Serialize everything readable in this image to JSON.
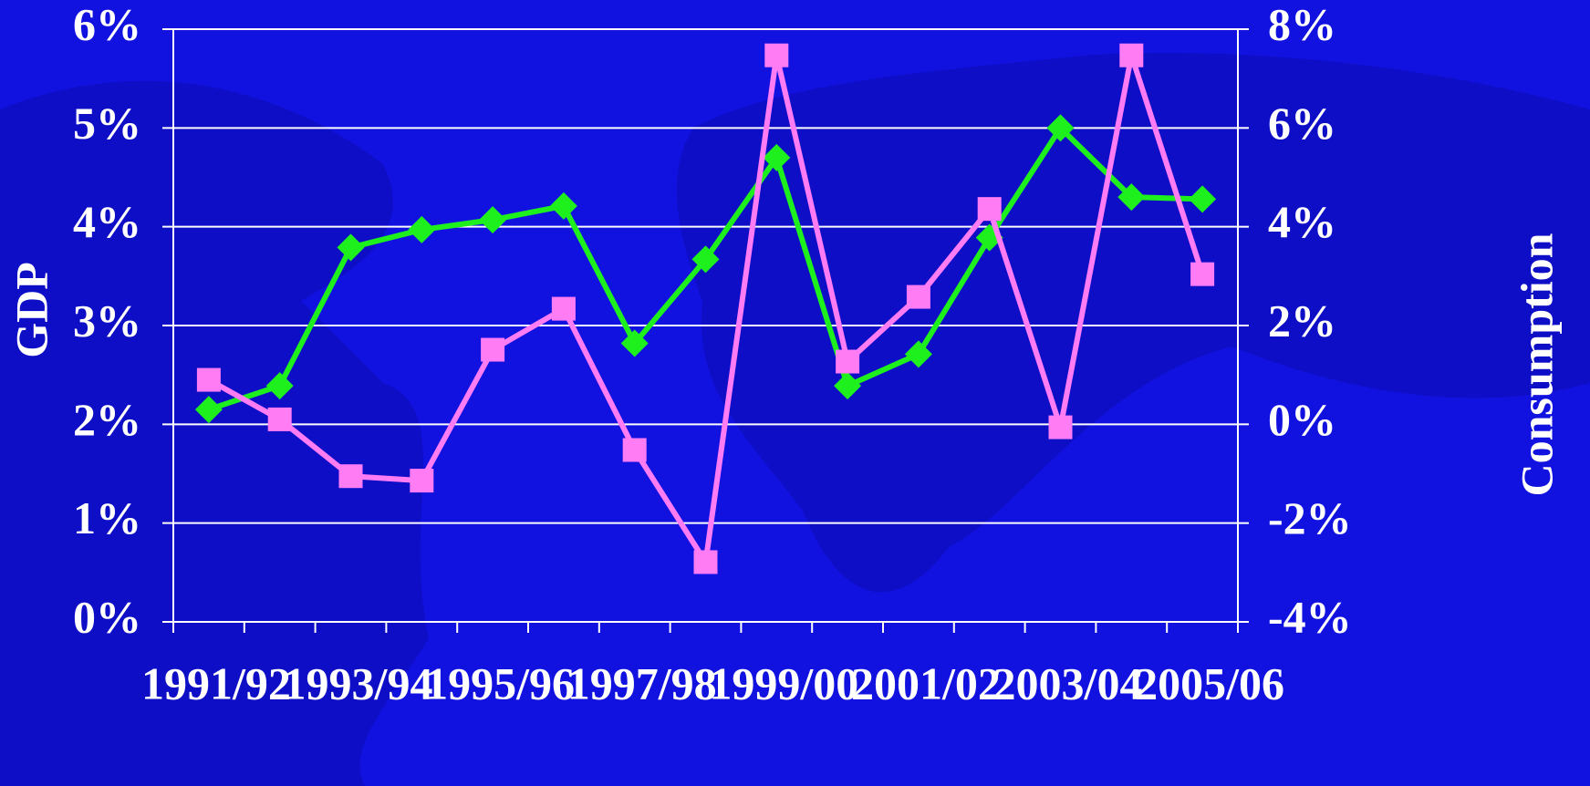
{
  "chart_data": {
    "type": "line",
    "categories": [
      "1991/92",
      null,
      "1993/94",
      null,
      "1995/96",
      null,
      "1997/98",
      null,
      "1999/00",
      null,
      "2001/02",
      null,
      "2003/04",
      null,
      "2005/06"
    ],
    "y_label": "GDP",
    "y2_label": "Consumption",
    "ylim": [
      0,
      6
    ],
    "yticks": [
      {
        "value": 0,
        "label": "0%"
      },
      {
        "value": 1,
        "label": "1%"
      },
      {
        "value": 2,
        "label": "2%"
      },
      {
        "value": 3,
        "label": "3%"
      },
      {
        "value": 4,
        "label": "4%"
      },
      {
        "value": 5,
        "label": "5%"
      },
      {
        "value": 6,
        "label": "6%"
      }
    ],
    "y2lim": [
      -4,
      8
    ],
    "y2ticks": [
      {
        "value": -4,
        "label": "-4%"
      },
      {
        "value": -2,
        "label": "-2%"
      },
      {
        "value": 0,
        "label": "0%"
      },
      {
        "value": 2,
        "label": "2%"
      },
      {
        "value": 4,
        "label": "4%"
      },
      {
        "value": 6,
        "label": "6%"
      },
      {
        "value": 8,
        "label": "8%"
      }
    ],
    "grid": true,
    "series": [
      {
        "color": "#1ef01e",
        "marker": "diamond",
        "values": [
          2.15,
          2.39,
          3.79,
          3.97,
          4.07,
          4.21,
          2.82,
          3.67,
          4.7,
          2.39,
          2.71,
          3.89,
          5.0,
          4.3,
          4.28
        ]
      },
      {
        "color": "#ff7cf5",
        "marker": "square",
        "axis": "y2",
        "values": [
          0.9,
          0.1,
          -1.05,
          -1.14,
          1.51,
          2.34,
          -0.52,
          -2.79,
          7.47,
          1.27,
          2.58,
          4.36,
          -0.06,
          7.47,
          3.04
        ]
      }
    ]
  }
}
